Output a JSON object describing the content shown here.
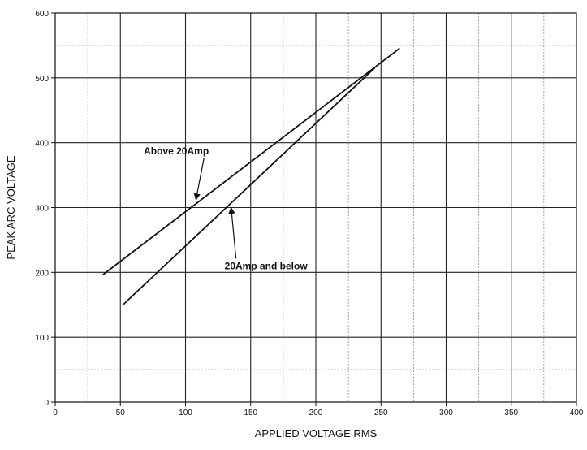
{
  "chart_data": {
    "type": "line",
    "title": "",
    "xlabel": "APPLIED VOLTAGE RMS",
    "ylabel": "PEAK ARC VOLTAGE",
    "xlim": [
      0,
      400
    ],
    "ylim": [
      0,
      600
    ],
    "x_ticks": [
      0,
      50,
      100,
      150,
      200,
      250,
      300,
      350,
      400
    ],
    "y_ticks": [
      0,
      100,
      200,
      300,
      400,
      500,
      600
    ],
    "x_tick_labels": [
      "0",
      "50",
      "100",
      "150",
      "200",
      "250",
      "300",
      "350",
      "400"
    ],
    "y_tick_labels": [
      "0",
      "100",
      "200",
      "300",
      "400",
      "500",
      "600"
    ],
    "grid": true,
    "minor_grid_step": {
      "x": 25,
      "y": 50
    },
    "series": [
      {
        "name": "Above 20Amp",
        "x": [
          37,
          264
        ],
        "y": [
          197,
          545
        ]
      },
      {
        "name": "20Amp and below",
        "x": [
          52,
          245
        ],
        "y": [
          150,
          515
        ]
      }
    ],
    "annotations": [
      {
        "label": "Above 20Amp",
        "text_x": 68,
        "text_y": 382,
        "arrow_x": 108,
        "arrow_y": 312
      },
      {
        "label": "20Amp and below",
        "text_x": 130,
        "text_y": 205,
        "arrow_x": 135,
        "arrow_y": 300
      }
    ]
  }
}
